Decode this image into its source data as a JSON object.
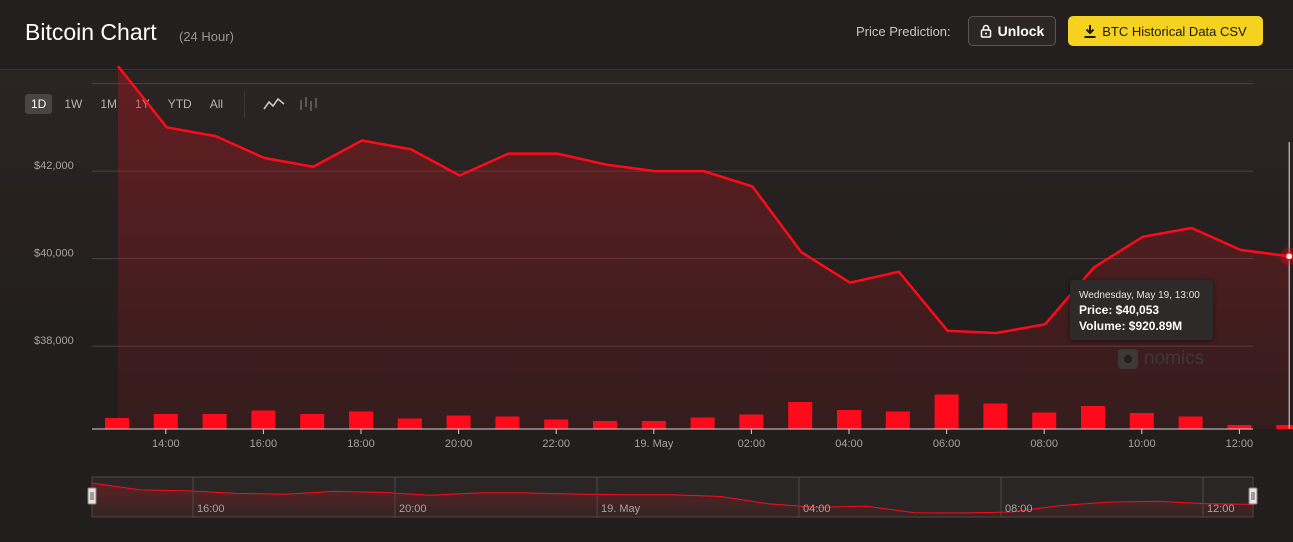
{
  "header": {
    "title": "Bitcoin Chart",
    "subtitle": "(24 Hour)",
    "price_prediction_label": "Price Prediction:",
    "unlock_label": "Unlock",
    "csv_label": "BTC Historical Data CSV"
  },
  "ranges": [
    "1D",
    "1W",
    "1M",
    "1Y",
    "YTD",
    "All"
  ],
  "active_range": "1D",
  "watermark": "nomics",
  "colors": {
    "accent": "#ff0a1a",
    "csv_button": "#f5d120",
    "background": "#221e1d"
  },
  "tooltip": {
    "date": "Wednesday, May 19, 13:00",
    "price": "Price: $40,053",
    "volume": "Volume: $920.89M"
  },
  "chart_data": {
    "type": "line",
    "x_tick_labels": [
      "14:00",
      "16:00",
      "18:00",
      "20:00",
      "22:00",
      "19. May",
      "02:00",
      "04:00",
      "06:00",
      "08:00",
      "10:00",
      "12:00"
    ],
    "y_tick_labels": [
      "$38,000",
      "$40,000",
      "$42,000"
    ],
    "ylim": [
      36700,
      43900
    ],
    "x": [
      "13:00",
      "14:00",
      "15:00",
      "16:00",
      "17:00",
      "18:00",
      "19:00",
      "20:00",
      "21:00",
      "22:00",
      "23:00",
      "00:00",
      "01:00",
      "02:00",
      "03:00",
      "04:00",
      "05:00",
      "06:00",
      "07:00",
      "08:00",
      "09:00",
      "10:00",
      "11:00",
      "12:00",
      "13:00"
    ],
    "series": [
      {
        "values": [
          44400,
          43000,
          42800,
          42300,
          42100,
          42700,
          42500,
          41900,
          42400,
          42400,
          42150,
          42000,
          42000,
          41650,
          40150,
          39450,
          39700,
          38350,
          38300,
          38500,
          39800,
          40500,
          40700,
          40200,
          40053
        ]
      }
    ],
    "volume_values": [
      110,
      150,
      150,
      185,
      150,
      175,
      105,
      135,
      125,
      95,
      80,
      80,
      115,
      145,
      270,
      190,
      175,
      345,
      255,
      165,
      230,
      160,
      125,
      40,
      40
    ],
    "navigator_tick_labels": [
      "16:00",
      "20:00",
      "19. May",
      "04:00",
      "08:00",
      "12:00"
    ],
    "grid": true
  }
}
